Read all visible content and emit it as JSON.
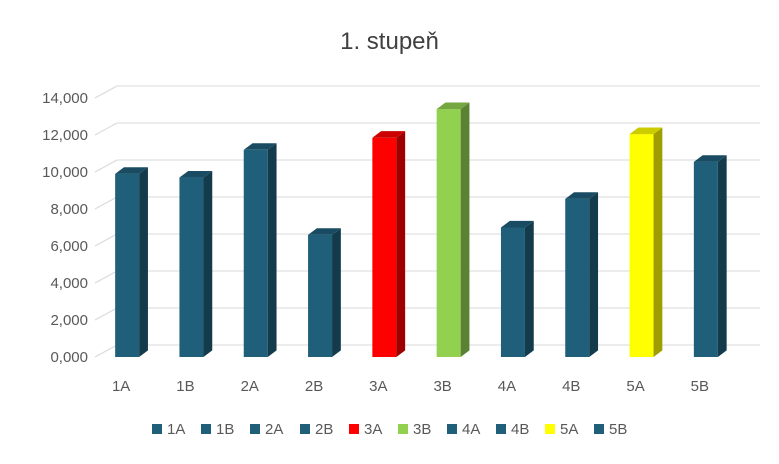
{
  "chart_data": {
    "type": "bar",
    "title": "1. stupeň",
    "categories": [
      "1A",
      "1B",
      "2A",
      "2B",
      "3A",
      "3B",
      "4A",
      "4B",
      "5A",
      "5B"
    ],
    "values": [
      9900,
      9700,
      11200,
      6600,
      11850,
      13400,
      7000,
      8550,
      12050,
      10550
    ],
    "colors": [
      "#1f5f7a",
      "#1f5f7a",
      "#1f5f7a",
      "#1f5f7a",
      "#ff0000",
      "#92d050",
      "#1f5f7a",
      "#1f5f7a",
      "#ffff00",
      "#1f5f7a"
    ],
    "y_ticks": [
      "0,000",
      "2,000",
      "4,000",
      "6,000",
      "8,000",
      "10,000",
      "12,000",
      "14,000"
    ],
    "ylim": [
      0,
      14000
    ],
    "grid": true,
    "legend": "bottom",
    "xlabel": "",
    "ylabel": ""
  }
}
